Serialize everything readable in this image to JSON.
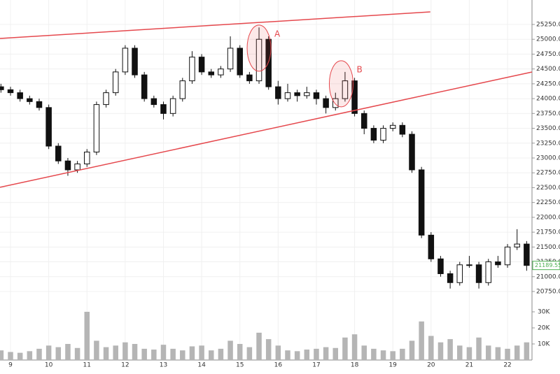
{
  "chart_data": {
    "type": "candlestick",
    "x": [
      8.75,
      9.0,
      9.25,
      9.5,
      9.75,
      10.0,
      10.25,
      10.5,
      10.75,
      11.0,
      11.25,
      11.5,
      11.75,
      12.0,
      12.25,
      12.5,
      12.75,
      13.0,
      13.25,
      13.5,
      13.75,
      14.0,
      14.25,
      14.5,
      14.75,
      15.0,
      15.25,
      15.5,
      15.75,
      16.0,
      16.25,
      16.5,
      16.75,
      17.0,
      17.25,
      17.5,
      17.75,
      18.0,
      18.25,
      18.5,
      18.75,
      19.0,
      19.25,
      19.5,
      19.75,
      20.0,
      20.25,
      20.5,
      20.75,
      21.0,
      21.25,
      21.5,
      21.75,
      22.0,
      22.25,
      22.5
    ],
    "open": [
      24200,
      24150,
      24100,
      24000,
      23950,
      23850,
      23200,
      22950,
      22800,
      22900,
      23100,
      23900,
      24100,
      24450,
      24850,
      24400,
      24000,
      23900,
      23750,
      24000,
      24300,
      24700,
      24450,
      24400,
      24500,
      24850,
      24400,
      24300,
      25000,
      24200,
      24000,
      24100,
      24050,
      24100,
      24000,
      23850,
      24000,
      24300,
      23750,
      23500,
      23300,
      23500,
      23550,
      23400,
      22800,
      21700,
      21300,
      21050,
      20900,
      21200,
      21200,
      20900,
      21250,
      21200,
      21500,
      21550
    ],
    "high": [
      24250,
      24200,
      24150,
      24050,
      24000,
      23900,
      23250,
      23000,
      22950,
      23150,
      23950,
      24150,
      24500,
      24900,
      24900,
      24450,
      24050,
      23950,
      24050,
      24350,
      24800,
      24750,
      24500,
      24550,
      25050,
      24900,
      24450,
      25200,
      25050,
      24300,
      24250,
      24150,
      24200,
      24150,
      24050,
      24100,
      24450,
      24350,
      23800,
      23550,
      23550,
      23600,
      23600,
      23450,
      22850,
      21750,
      21350,
      21100,
      21250,
      21350,
      21250,
      21300,
      21350,
      21550,
      21800,
      21600
    ],
    "low": [
      24100,
      24050,
      23950,
      23900,
      23800,
      23150,
      22900,
      22700,
      22750,
      22850,
      23050,
      23850,
      24050,
      24400,
      24350,
      23950,
      23850,
      23650,
      23700,
      23950,
      24250,
      24400,
      24350,
      24350,
      24450,
      24350,
      24250,
      24250,
      24150,
      23900,
      23950,
      23950,
      24000,
      23900,
      23750,
      23800,
      23950,
      23700,
      23400,
      23250,
      23250,
      23450,
      23350,
      22750,
      21650,
      21250,
      21000,
      20800,
      20850,
      21150,
      20800,
      20850,
      21150,
      21150,
      21450,
      21100
    ],
    "close": [
      24150,
      24100,
      24000,
      23950,
      23850,
      23200,
      22950,
      22800,
      22900,
      23100,
      23900,
      24100,
      24450,
      24850,
      24400,
      24000,
      23900,
      23750,
      24000,
      24300,
      24700,
      24450,
      24400,
      24500,
      24850,
      24400,
      24300,
      25000,
      24200,
      24000,
      24100,
      24050,
      24100,
      24000,
      23850,
      24000,
      24300,
      23750,
      23500,
      23300,
      23500,
      23550,
      23400,
      22800,
      21700,
      21300,
      21050,
      20900,
      21200,
      21200,
      20900,
      21250,
      21200,
      21500,
      21550,
      21189.55
    ],
    "volume": [
      6000,
      5000,
      4500,
      5500,
      7000,
      9000,
      8000,
      10000,
      7500,
      30000,
      12000,
      8000,
      9000,
      11000,
      10000,
      7000,
      6500,
      9500,
      7000,
      6000,
      8500,
      9000,
      6000,
      7000,
      12000,
      10000,
      8000,
      17000,
      13000,
      9000,
      6000,
      5500,
      6500,
      7000,
      8000,
      7500,
      14000,
      16000,
      9000,
      7000,
      6000,
      5500,
      7000,
      12000,
      24000,
      15000,
      11000,
      13000,
      9000,
      8000,
      14000,
      9000,
      8000,
      7000,
      9000,
      11000
    ],
    "color": "#111111",
    "volume_color": "#b5b5b5",
    "xlim": [
      8.725,
      22.64
    ],
    "xticks": [
      9,
      10,
      11,
      12,
      13,
      14,
      15,
      16,
      17,
      18,
      19,
      20,
      21,
      22
    ],
    "ylim": [
      20538,
      25662
    ],
    "yticks": [
      {
        "value": 20750,
        "label": "20750.00"
      },
      {
        "value": 21000,
        "label": "21000.00"
      },
      {
        "value": 21250,
        "label": "21250.00"
      },
      {
        "value": 21500,
        "label": "21500.00"
      },
      {
        "value": 21750,
        "label": "21750.00"
      },
      {
        "value": 22000,
        "label": "22000.00"
      },
      {
        "value": 22250,
        "label": "22250.00"
      },
      {
        "value": 22500,
        "label": "22500.00"
      },
      {
        "value": 22750,
        "label": "22750.00"
      },
      {
        "value": 23000,
        "label": "23000.00"
      },
      {
        "value": 23250,
        "label": "23250.00"
      },
      {
        "value": 23500,
        "label": "23500.00"
      },
      {
        "value": 23750,
        "label": "23750.00"
      },
      {
        "value": 24000,
        "label": "24000.00"
      },
      {
        "value": 24250,
        "label": "24250.00"
      },
      {
        "value": 24500,
        "label": "24500.00"
      },
      {
        "value": 24750,
        "label": "24750.00"
      },
      {
        "value": 25000,
        "label": "25000.00"
      },
      {
        "value": 25250,
        "label": "25250.00"
      }
    ],
    "volume_ylim": [
      0,
      34800
    ],
    "volume_ticks": [
      {
        "value": 10000,
        "label": "10K"
      },
      {
        "value": 20000,
        "label": "20K"
      },
      {
        "value": 30000,
        "label": "30K"
      }
    ],
    "grid": true,
    "trendlines": [
      {
        "color": "#e5484d",
        "x": [
          8.725,
          19.98
        ],
        "y": [
          25014,
          25462
        ]
      },
      {
        "color": "#e5484d",
        "x": [
          8.725,
          22.64
        ],
        "y": [
          22506,
          24449
        ]
      }
    ],
    "annotations": [
      {
        "text": "A",
        "x": 15.5,
        "y": 24850
      },
      {
        "text": "B",
        "x": 17.65,
        "y": 24250
      }
    ],
    "last_price_color": "#4caf50"
  }
}
